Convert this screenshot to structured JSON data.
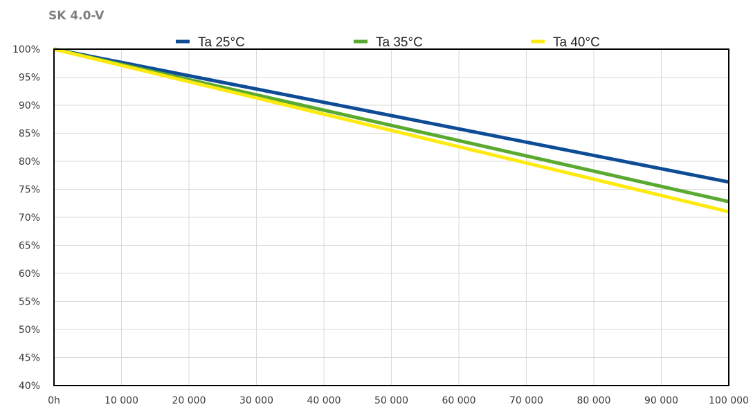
{
  "chart_data": {
    "type": "line",
    "title": "SK 4.0-V",
    "xlabel": "",
    "ylabel": "",
    "x_ticks": [
      "0h",
      "10 000",
      "20 000",
      "30 000",
      "40 000",
      "50 000",
      "60 000",
      "70 000",
      "80 000",
      "90 000",
      "100 000"
    ],
    "y_ticks": [
      "40%",
      "45%",
      "50%",
      "55%",
      "60%",
      "65%",
      "70%",
      "75%",
      "80%",
      "85%",
      "90%",
      "95%",
      "100%"
    ],
    "xlim": [
      0,
      100000
    ],
    "ylim": [
      40,
      100
    ],
    "grid": true,
    "legend_position": "top",
    "x": [
      0,
      100000
    ],
    "series": [
      {
        "name": "Ta 25°C",
        "values": [
          100,
          76.3
        ],
        "color": "#0f4c96"
      },
      {
        "name": "Ta 35°C",
        "values": [
          100,
          72.8
        ],
        "color": "#5aaa32"
      },
      {
        "name": "Ta 40°C",
        "values": [
          100,
          71.0
        ],
        "color": "#fcea10"
      }
    ]
  }
}
